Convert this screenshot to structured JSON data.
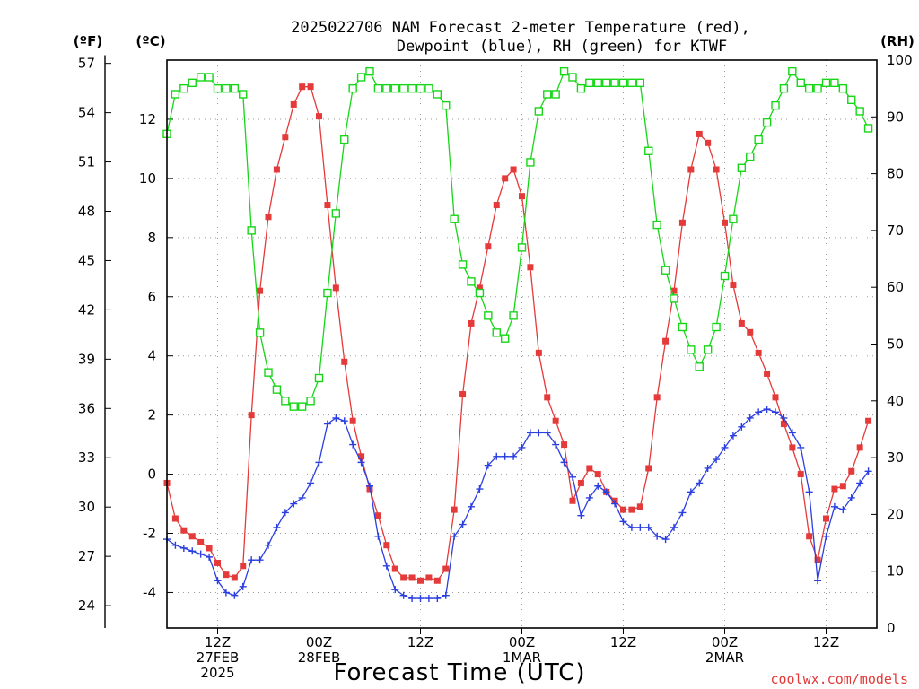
{
  "chart_data": {
    "type": "line",
    "title_line1": "2025022706 NAM Forecast 2-meter Temperature (red),",
    "title_line2": "Dewpoint (blue), RH (green) for KTWF",
    "xlabel": "Forecast Time (UTC)",
    "credit": "coolwx.com/models",
    "unit_labels": {
      "fahrenheit": "(ºF)",
      "celsius": "(ºC)",
      "rh": "(RH)"
    },
    "x_range_hours": [
      0,
      84
    ],
    "x_ticks": [
      {
        "hour": 6,
        "lines": [
          "12Z",
          "27FEB",
          "2025"
        ]
      },
      {
        "hour": 18,
        "lines": [
          "00Z",
          "28FEB"
        ]
      },
      {
        "hour": 30,
        "lines": [
          "12Z"
        ]
      },
      {
        "hour": 42,
        "lines": [
          "00Z",
          "1MAR"
        ]
      },
      {
        "hour": 54,
        "lines": [
          "12Z"
        ]
      },
      {
        "hour": 66,
        "lines": [
          "00Z",
          "2MAR"
        ]
      },
      {
        "hour": 78,
        "lines": [
          "12Z"
        ]
      }
    ],
    "y_celsius": {
      "range": [
        -5.2,
        14
      ],
      "ticks": [
        -4,
        -2,
        0,
        2,
        4,
        6,
        8,
        10,
        12
      ]
    },
    "y_fahrenheit": {
      "ticks": [
        24,
        27,
        30,
        33,
        36,
        39,
        42,
        45,
        48,
        51,
        54,
        57
      ]
    },
    "y_rh": {
      "range": [
        0,
        100
      ],
      "ticks": [
        0,
        10,
        20,
        30,
        40,
        50,
        60,
        70,
        80,
        90,
        100
      ]
    },
    "series": [
      {
        "key": "temperature",
        "color": "#e43a3a",
        "marker": "filled-square",
        "axis": "celsius",
        "points": [
          [
            0,
            -0.3
          ],
          [
            1,
            -1.5
          ],
          [
            2,
            -1.9
          ],
          [
            3,
            -2.1
          ],
          [
            4,
            -2.3
          ],
          [
            5,
            -2.5
          ],
          [
            6,
            -3.0
          ],
          [
            7,
            -3.4
          ],
          [
            8,
            -3.5
          ],
          [
            9,
            -3.1
          ],
          [
            10,
            2.0
          ],
          [
            11,
            6.2
          ],
          [
            12,
            8.7
          ],
          [
            13,
            10.3
          ],
          [
            14,
            11.4
          ],
          [
            15,
            12.5
          ],
          [
            16,
            13.1
          ],
          [
            17,
            13.1
          ],
          [
            18,
            12.1
          ],
          [
            19,
            9.1
          ],
          [
            20,
            6.3
          ],
          [
            21,
            3.8
          ],
          [
            22,
            1.8
          ],
          [
            23,
            0.6
          ],
          [
            24,
            -0.5
          ],
          [
            25,
            -1.4
          ],
          [
            26,
            -2.4
          ],
          [
            27,
            -3.2
          ],
          [
            28,
            -3.5
          ],
          [
            29,
            -3.5
          ],
          [
            30,
            -3.6
          ],
          [
            31,
            -3.5
          ],
          [
            32,
            -3.6
          ],
          [
            33,
            -3.2
          ],
          [
            34,
            -1.2
          ],
          [
            35,
            2.7
          ],
          [
            36,
            5.1
          ],
          [
            37,
            6.3
          ],
          [
            38,
            7.7
          ],
          [
            39,
            9.1
          ],
          [
            40,
            10.0
          ],
          [
            41,
            10.3
          ],
          [
            42,
            9.4
          ],
          [
            43,
            7.0
          ],
          [
            44,
            4.1
          ],
          [
            45,
            2.6
          ],
          [
            46,
            1.8
          ],
          [
            47,
            1.0
          ],
          [
            48,
            -0.9
          ],
          [
            49,
            -0.3
          ],
          [
            50,
            0.2
          ],
          [
            51,
            0.0
          ],
          [
            52,
            -0.6
          ],
          [
            53,
            -0.9
          ],
          [
            54,
            -1.2
          ],
          [
            55,
            -1.2
          ],
          [
            56,
            -1.1
          ],
          [
            57,
            0.2
          ],
          [
            58,
            2.6
          ],
          [
            59,
            4.5
          ],
          [
            60,
            6.2
          ],
          [
            61,
            8.5
          ],
          [
            62,
            10.3
          ],
          [
            63,
            11.5
          ],
          [
            64,
            11.2
          ],
          [
            65,
            10.3
          ],
          [
            66,
            8.5
          ],
          [
            67,
            6.4
          ],
          [
            68,
            5.1
          ],
          [
            69,
            4.8
          ],
          [
            70,
            4.1
          ],
          [
            71,
            3.4
          ],
          [
            72,
            2.6
          ],
          [
            73,
            1.7
          ],
          [
            74,
            0.9
          ],
          [
            75,
            0.0
          ],
          [
            76,
            -2.1
          ],
          [
            77,
            -2.9
          ],
          [
            78,
            -1.5
          ],
          [
            79,
            -0.5
          ],
          [
            80,
            -0.4
          ],
          [
            81,
            0.1
          ],
          [
            82,
            0.9
          ],
          [
            83,
            1.8
          ]
        ]
      },
      {
        "key": "dewpoint",
        "color": "#2b3fe0",
        "marker": "plus",
        "axis": "celsius",
        "points": [
          [
            0,
            -2.2
          ],
          [
            1,
            -2.4
          ],
          [
            2,
            -2.5
          ],
          [
            3,
            -2.6
          ],
          [
            4,
            -2.7
          ],
          [
            5,
            -2.8
          ],
          [
            6,
            -3.6
          ],
          [
            7,
            -4.0
          ],
          [
            8,
            -4.1
          ],
          [
            9,
            -3.8
          ],
          [
            10,
            -2.9
          ],
          [
            11,
            -2.9
          ],
          [
            12,
            -2.4
          ],
          [
            13,
            -1.8
          ],
          [
            14,
            -1.3
          ],
          [
            15,
            -1.0
          ],
          [
            16,
            -0.8
          ],
          [
            17,
            -0.3
          ],
          [
            18,
            0.4
          ],
          [
            19,
            1.7
          ],
          [
            20,
            1.9
          ],
          [
            21,
            1.8
          ],
          [
            22,
            1.0
          ],
          [
            23,
            0.4
          ],
          [
            24,
            -0.4
          ],
          [
            25,
            -2.1
          ],
          [
            26,
            -3.1
          ],
          [
            27,
            -3.9
          ],
          [
            28,
            -4.1
          ],
          [
            29,
            -4.2
          ],
          [
            30,
            -4.2
          ],
          [
            31,
            -4.2
          ],
          [
            32,
            -4.2
          ],
          [
            33,
            -4.1
          ],
          [
            34,
            -2.1
          ],
          [
            35,
            -1.7
          ],
          [
            36,
            -1.1
          ],
          [
            37,
            -0.5
          ],
          [
            38,
            0.3
          ],
          [
            39,
            0.6
          ],
          [
            40,
            0.6
          ],
          [
            41,
            0.6
          ],
          [
            42,
            0.9
          ],
          [
            43,
            1.4
          ],
          [
            44,
            1.4
          ],
          [
            45,
            1.4
          ],
          [
            46,
            1.0
          ],
          [
            47,
            0.4
          ],
          [
            48,
            -0.1
          ],
          [
            49,
            -1.4
          ],
          [
            50,
            -0.8
          ],
          [
            51,
            -0.4
          ],
          [
            52,
            -0.6
          ],
          [
            53,
            -1.0
          ],
          [
            54,
            -1.6
          ],
          [
            55,
            -1.8
          ],
          [
            56,
            -1.8
          ],
          [
            57,
            -1.8
          ],
          [
            58,
            -2.1
          ],
          [
            59,
            -2.2
          ],
          [
            60,
            -1.8
          ],
          [
            61,
            -1.3
          ],
          [
            62,
            -0.6
          ],
          [
            63,
            -0.3
          ],
          [
            64,
            0.2
          ],
          [
            65,
            0.5
          ],
          [
            66,
            0.9
          ],
          [
            67,
            1.3
          ],
          [
            68,
            1.6
          ],
          [
            69,
            1.9
          ],
          [
            70,
            2.1
          ],
          [
            71,
            2.2
          ],
          [
            72,
            2.1
          ],
          [
            73,
            1.9
          ],
          [
            74,
            1.4
          ],
          [
            75,
            0.9
          ],
          [
            76,
            -0.6
          ],
          [
            77,
            -3.6
          ],
          [
            78,
            -2.1
          ],
          [
            79,
            -1.1
          ],
          [
            80,
            -1.2
          ],
          [
            81,
            -0.8
          ],
          [
            82,
            -0.3
          ],
          [
            83,
            0.1
          ]
        ]
      },
      {
        "key": "rh",
        "color": "#17d617",
        "marker": "open-square",
        "axis": "rh",
        "points": [
          [
            0,
            87
          ],
          [
            1,
            94
          ],
          [
            2,
            95
          ],
          [
            3,
            96
          ],
          [
            4,
            97
          ],
          [
            5,
            97
          ],
          [
            6,
            95
          ],
          [
            7,
            95
          ],
          [
            8,
            95
          ],
          [
            9,
            94
          ],
          [
            10,
            70
          ],
          [
            11,
            52
          ],
          [
            12,
            45
          ],
          [
            13,
            42
          ],
          [
            14,
            40
          ],
          [
            15,
            39
          ],
          [
            16,
            39
          ],
          [
            17,
            40
          ],
          [
            18,
            44
          ],
          [
            19,
            59
          ],
          [
            20,
            73
          ],
          [
            21,
            86
          ],
          [
            22,
            95
          ],
          [
            23,
            97
          ],
          [
            24,
            98
          ],
          [
            25,
            95
          ],
          [
            26,
            95
          ],
          [
            27,
            95
          ],
          [
            28,
            95
          ],
          [
            29,
            95
          ],
          [
            30,
            95
          ],
          [
            31,
            95
          ],
          [
            32,
            94
          ],
          [
            33,
            92
          ],
          [
            34,
            72
          ],
          [
            35,
            64
          ],
          [
            36,
            61
          ],
          [
            37,
            59
          ],
          [
            38,
            55
          ],
          [
            39,
            52
          ],
          [
            40,
            51
          ],
          [
            41,
            55
          ],
          [
            42,
            67
          ],
          [
            43,
            82
          ],
          [
            44,
            91
          ],
          [
            45,
            94
          ],
          [
            46,
            94
          ],
          [
            47,
            98
          ],
          [
            48,
            97
          ],
          [
            49,
            95
          ],
          [
            50,
            96
          ],
          [
            51,
            96
          ],
          [
            52,
            96
          ],
          [
            53,
            96
          ],
          [
            54,
            96
          ],
          [
            55,
            96
          ],
          [
            56,
            96
          ],
          [
            57,
            84
          ],
          [
            58,
            71
          ],
          [
            59,
            63
          ],
          [
            60,
            58
          ],
          [
            61,
            53
          ],
          [
            62,
            49
          ],
          [
            63,
            46
          ],
          [
            64,
            49
          ],
          [
            65,
            53
          ],
          [
            66,
            62
          ],
          [
            67,
            72
          ],
          [
            68,
            81
          ],
          [
            69,
            83
          ],
          [
            70,
            86
          ],
          [
            71,
            89
          ],
          [
            72,
            92
          ],
          [
            73,
            95
          ],
          [
            74,
            98
          ],
          [
            75,
            96
          ],
          [
            76,
            95
          ],
          [
            77,
            95
          ],
          [
            78,
            96
          ],
          [
            79,
            96
          ],
          [
            80,
            95
          ],
          [
            81,
            93
          ],
          [
            82,
            91
          ],
          [
            83,
            88
          ]
        ]
      }
    ]
  }
}
